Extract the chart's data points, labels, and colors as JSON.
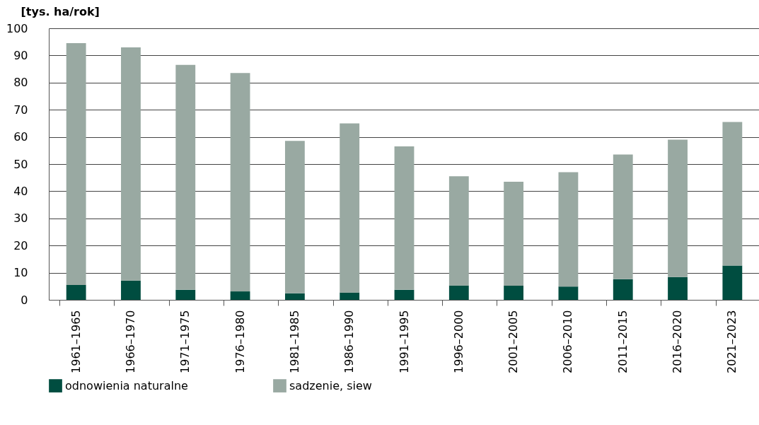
{
  "chart_data": {
    "type": "bar",
    "stacked": true,
    "ylabel": "[tys. ha/rok]",
    "categories": [
      "1961–1965",
      "1966–1970",
      "1971–1975",
      "1976–1980",
      "1981–1985",
      "1986–1990",
      "1991–1995",
      "1996–2000",
      "2001–2005",
      "2006–2010",
      "2011–2015",
      "2016–2020",
      "2021–2023"
    ],
    "series": [
      {
        "name": "odnowienia naturalne",
        "color": "#004d40",
        "values": [
          5.5,
          7.1,
          3.7,
          3.1,
          2.4,
          2.7,
          3.7,
          5.3,
          5.2,
          4.9,
          7.6,
          8.4,
          12.6
        ]
      },
      {
        "name": "sadzenie, siew",
        "color": "#99a9a2",
        "values": [
          89.0,
          85.9,
          82.8,
          80.4,
          56.1,
          62.3,
          52.8,
          40.2,
          38.3,
          42.1,
          45.9,
          50.6,
          52.9
        ]
      }
    ],
    "ylim": [
      0,
      100
    ],
    "yticks": [
      0,
      10,
      20,
      30,
      40,
      50,
      60,
      70,
      80,
      90,
      100
    ],
    "grid": "y",
    "legend": "bottom"
  }
}
